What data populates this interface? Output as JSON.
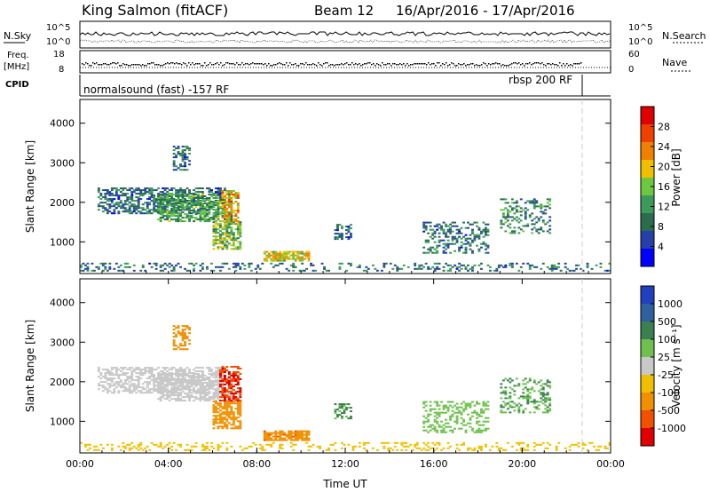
{
  "header": {
    "station": "King Salmon (fitACF)",
    "beam": "Beam 12",
    "date_range": "16/Apr/2016 - 17/Apr/2016"
  },
  "panels": {
    "nsky_label": "N.Sky",
    "nsearch_label": "N.Search",
    "freq_label_1": "Freq.",
    "freq_label_2": "[MHz]",
    "nave_label": "Nave",
    "cpid_label": "CPID",
    "top_left_ticks": [
      "10^5",
      "10^0"
    ],
    "top_right_ticks": [
      "10^5",
      "10^0"
    ],
    "freq_ticks": [
      "18",
      "8"
    ],
    "nave_ticks": [
      "60",
      "0"
    ],
    "cpid_mode_1": "normalsound (fast) -157 RF",
    "cpid_mode_2": "rbsp 200 RF"
  },
  "colors": {
    "power_scale": [
      "#0000ff",
      "#2540a8",
      "#2b6b4e",
      "#3c9b5a",
      "#6cc840",
      "#f0c000",
      "#f08000",
      "#f04000",
      "#e00000"
    ],
    "velocity_scale": [
      "#2040c0",
      "#3060a0",
      "#3a8050",
      "#70c050",
      "#c8c8c8",
      "#f0c000",
      "#f09000",
      "#f05000",
      "#e00000"
    ]
  },
  "chart_data": [
    {
      "type": "heatmap",
      "name": "power",
      "xlabel": "",
      "ylabel": "Slant Range [km]",
      "ylim": [
        200,
        4600
      ],
      "yticks": [
        "1000",
        "2000",
        "3000",
        "4000"
      ],
      "colorbar": {
        "label": "Power [dB]",
        "ticks": [
          "4",
          "8",
          "12",
          "16",
          "20",
          "24",
          "28"
        ],
        "range": [
          0,
          30
        ]
      },
      "blobs": [
        {
          "t0": 0.8,
          "t1": 6.5,
          "r0": 1700,
          "r1": 2350,
          "value": 8,
          "density": 0.55
        },
        {
          "t0": 3.5,
          "t1": 6.8,
          "r0": 1500,
          "r1": 2200,
          "value": 12,
          "density": 0.6
        },
        {
          "t0": 4.2,
          "t1": 4.9,
          "r0": 2800,
          "r1": 3400,
          "value": 8,
          "density": 0.5
        },
        {
          "t0": 6.0,
          "t1": 7.2,
          "r0": 800,
          "r1": 1500,
          "value": 14,
          "density": 0.7
        },
        {
          "t0": 6.4,
          "t1": 7.1,
          "r0": 1500,
          "r1": 2300,
          "value": 20,
          "density": 0.55
        },
        {
          "t0": 8.3,
          "t1": 10.3,
          "r0": 500,
          "r1": 750,
          "value": 18,
          "density": 0.75
        },
        {
          "t0": 11.5,
          "t1": 12.2,
          "r0": 1050,
          "r1": 1450,
          "value": 8,
          "density": 0.5
        },
        {
          "t0": 15.5,
          "t1": 18.5,
          "r0": 700,
          "r1": 1500,
          "value": 8,
          "density": 0.4
        },
        {
          "t0": 19.0,
          "t1": 21.3,
          "r0": 1200,
          "r1": 2100,
          "value": 10,
          "density": 0.3
        },
        {
          "t0": 0.0,
          "t1": 24.0,
          "r0": 250,
          "r1": 450,
          "value": 8,
          "density": 0.25
        }
      ]
    },
    {
      "type": "heatmap",
      "name": "velocity",
      "xlabel": "Time UT",
      "ylabel": "Slant Range [km]",
      "ylim": [
        200,
        4600
      ],
      "yticks": [
        "1000",
        "2000",
        "3000",
        "4000"
      ],
      "xticks": [
        "00:00",
        "04:00",
        "08:00",
        "12:00",
        "16:00",
        "20:00",
        "00:00"
      ],
      "xlim_hours": [
        0,
        24
      ],
      "colorbar": {
        "label": "Velocity [m s⁻¹]",
        "ticks": [
          "1000",
          "500",
          "100",
          "25",
          "-25",
          "-100",
          "-500",
          "-1000"
        ]
      },
      "blobs": [
        {
          "t0": 0.8,
          "t1": 6.5,
          "r0": 1700,
          "r1": 2350,
          "value": 0,
          "density": 0.55
        },
        {
          "t0": 3.5,
          "t1": 6.8,
          "r0": 1500,
          "r1": 2200,
          "value": 0,
          "density": 0.6
        },
        {
          "t0": 4.2,
          "t1": 4.9,
          "r0": 2800,
          "r1": 3400,
          "value": -200,
          "density": 0.5
        },
        {
          "t0": 6.0,
          "t1": 7.2,
          "r0": 800,
          "r1": 1500,
          "value": -300,
          "density": 0.7
        },
        {
          "t0": 6.3,
          "t1": 7.2,
          "r0": 1500,
          "r1": 2400,
          "value": -1000,
          "density": 0.55
        },
        {
          "t0": 8.3,
          "t1": 10.3,
          "r0": 500,
          "r1": 750,
          "value": -400,
          "density": 0.75
        },
        {
          "t0": 11.5,
          "t1": 12.2,
          "r0": 1050,
          "r1": 1450,
          "value": 100,
          "density": 0.5
        },
        {
          "t0": 15.5,
          "t1": 18.5,
          "r0": 700,
          "r1": 1500,
          "value": 60,
          "density": 0.4
        },
        {
          "t0": 19.0,
          "t1": 21.3,
          "r0": 1200,
          "r1": 2100,
          "value": 100,
          "density": 0.3
        },
        {
          "t0": 0.0,
          "t1": 24.0,
          "r0": 250,
          "r1": 450,
          "value": -60,
          "density": 0.25
        }
      ]
    }
  ]
}
